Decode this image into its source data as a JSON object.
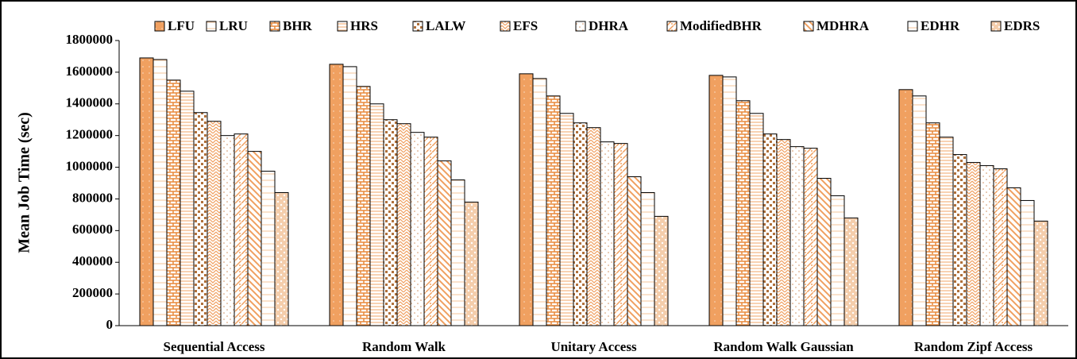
{
  "chart_data": {
    "type": "bar",
    "y_label": "Mean Job Time (sec)",
    "categories": [
      "Sequential Access",
      "Random Walk",
      "Unitary Access",
      "Random Walk Gaussian",
      "Random Zipf Access"
    ],
    "series": [
      {
        "name": "LFU",
        "color": "#f0a060",
        "values": [
          1690000,
          1650000,
          1590000,
          1580000,
          1490000
        ]
      },
      {
        "name": "LRU",
        "color": "#f5c49a",
        "values": [
          1680000,
          1635000,
          1560000,
          1570000,
          1450000
        ]
      },
      {
        "name": "BHR",
        "color": "#e8893a",
        "values": [
          1550000,
          1510000,
          1450000,
          1420000,
          1280000
        ]
      },
      {
        "name": "HRS",
        "color": "#f5c49a",
        "values": [
          1480000,
          1400000,
          1340000,
          1340000,
          1190000
        ]
      },
      {
        "name": "LALW",
        "color": "#b0703a",
        "values": [
          1345000,
          1300000,
          1280000,
          1210000,
          1080000
        ]
      },
      {
        "name": "EFS",
        "color": "#f0a060",
        "values": [
          1290000,
          1275000,
          1250000,
          1175000,
          1030000
        ]
      },
      {
        "name": "DHRA",
        "color": "#d09060",
        "values": [
          1200000,
          1220000,
          1160000,
          1130000,
          1010000
        ]
      },
      {
        "name": "ModifiedBHR",
        "color": "#f0a060",
        "values": [
          1210000,
          1190000,
          1150000,
          1120000,
          990000
        ]
      },
      {
        "name": "MDHRA",
        "color": "#f0a060",
        "values": [
          1100000,
          1040000,
          940000,
          930000,
          870000
        ]
      },
      {
        "name": "EDHR",
        "color": "#f5c49a",
        "values": [
          975000,
          920000,
          840000,
          820000,
          790000
        ]
      },
      {
        "name": "EDRS",
        "color": "#f0b888",
        "values": [
          840000,
          780000,
          690000,
          680000,
          660000
        ]
      }
    ],
    "ylim": [
      0,
      1800000
    ],
    "yticks": [
      0,
      200000,
      400000,
      600000,
      800000,
      1000000,
      1200000,
      1400000,
      1600000,
      1800000
    ]
  }
}
